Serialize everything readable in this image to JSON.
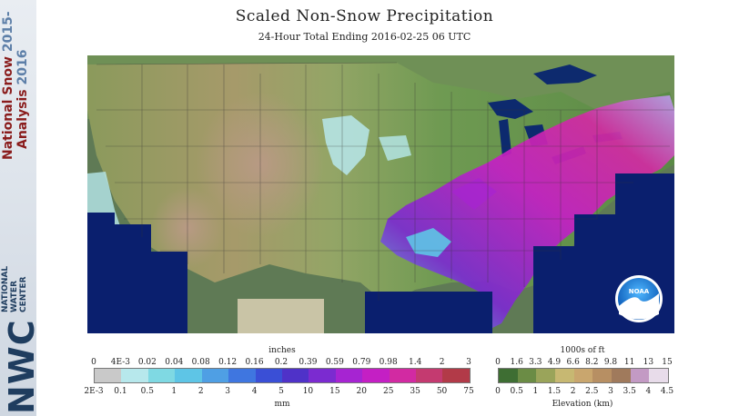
{
  "title": "Scaled Non-Snow Precipitation",
  "subtitle": "24-Hour Total Ending 2016-02-25 06 UTC",
  "branding": {
    "nsa_word1": "National Snow",
    "nsa_year1": "2015-",
    "nsa_word2": "Analysis",
    "nsa_year2": "2016",
    "nwc_acronym": "NWC",
    "nwc_line1": "NATIONAL",
    "nwc_line2": "WATER",
    "nwc_line3": "CENTER",
    "noaa_logo_text": "NOAA"
  },
  "precip_legend": {
    "unit_top": "inches",
    "unit_bottom": "mm",
    "ticks_inches": [
      "0",
      "4E-3",
      "0.02",
      "0.04",
      "0.08",
      "0.12",
      "0.16",
      "0.2",
      "0.39",
      "0.59",
      "0.79",
      "0.98",
      "1.4",
      "2",
      "3"
    ],
    "ticks_mm": [
      "2E-3",
      "0.1",
      "0.5",
      "1",
      "2",
      "3",
      "4",
      "5",
      "10",
      "15",
      "20",
      "25",
      "35",
      "50",
      "75"
    ],
    "colors": [
      "#c9c9c9",
      "#b7e8ec",
      "#7fd9e3",
      "#5ec5e6",
      "#4f9fe4",
      "#3f76e0",
      "#3a4fd6",
      "#4f32c8",
      "#7b2bd0",
      "#a624d2",
      "#c41fc4",
      "#d22aa2",
      "#c43a70",
      "#b23a48"
    ]
  },
  "elev_legend": {
    "unit_top": "1000s of ft",
    "unit_bottom": "Elevation (km)",
    "ticks_ft": [
      "0",
      "1.6",
      "3.3",
      "4.9",
      "6.6",
      "8.2",
      "9.8",
      "11",
      "13",
      "15"
    ],
    "ticks_km": [
      "0",
      "0.5",
      "1",
      "1.5",
      "2",
      "2.5",
      "3",
      "3.5",
      "4",
      "4.5"
    ],
    "colors": [
      "#3e6e33",
      "#6b8c45",
      "#9aa45a",
      "#c7b872",
      "#c9a66e",
      "#b78f63",
      "#a07a5c",
      "#c39ac4",
      "#e8dcea"
    ]
  }
}
